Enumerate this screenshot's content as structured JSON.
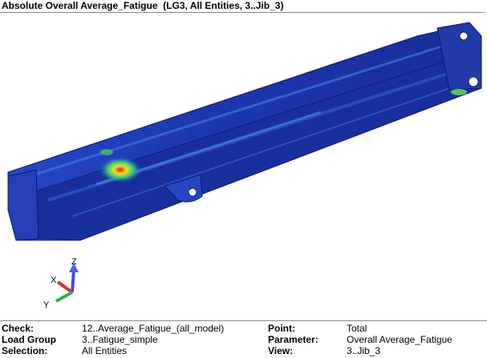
{
  "header": {
    "title": "Absolute Overall Average_Fatigue  (LG3, All Entities, 3..Jib_3)"
  },
  "triad": {
    "z": "Z",
    "x": "X",
    "y": "Y"
  },
  "info": {
    "rows": [
      [
        "Check:",
        "12..Average_Fatigue_(all_model)",
        "Point:",
        "Total"
      ],
      [
        "Load Group",
        "3..Fatigue_simple",
        "Parameter:",
        "Overall Average_Fatigue"
      ],
      [
        "Selection:",
        "All Entities",
        "View:",
        "3..Jib_3"
      ]
    ]
  }
}
